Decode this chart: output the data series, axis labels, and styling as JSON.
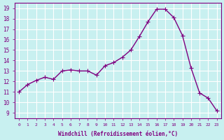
{
  "x": [
    0,
    1,
    2,
    3,
    4,
    5,
    6,
    7,
    8,
    9,
    10,
    11,
    12,
    13,
    14,
    15,
    16,
    17,
    18,
    19,
    20,
    21,
    22,
    23
  ],
  "y": [
    11.0,
    11.7,
    12.1,
    12.4,
    12.2,
    13.0,
    13.1,
    13.0,
    13.0,
    12.6,
    13.5,
    13.8,
    14.3,
    15.0,
    16.3,
    17.7,
    18.9,
    18.9,
    18.1,
    16.4,
    13.3,
    10.9,
    10.4,
    9.2
  ],
  "line_color": "#800080",
  "marker": "+",
  "bg_color": "#c8f0f0",
  "grid_color": "#ffffff",
  "xlabel": "Windchill (Refroidissement éolien,°C)",
  "ylabel_ticks": [
    9,
    10,
    11,
    12,
    13,
    14,
    15,
    16,
    17,
    18,
    19
  ],
  "xlabel_ticks": [
    0,
    1,
    2,
    3,
    4,
    5,
    6,
    7,
    8,
    9,
    10,
    11,
    12,
    13,
    14,
    15,
    16,
    17,
    18,
    19,
    20,
    21,
    22,
    23
  ],
  "ylim": [
    8.5,
    19.5
  ],
  "xlim": [
    -0.5,
    23.5
  ],
  "axis_label_color": "#800080",
  "tick_color": "#800080"
}
